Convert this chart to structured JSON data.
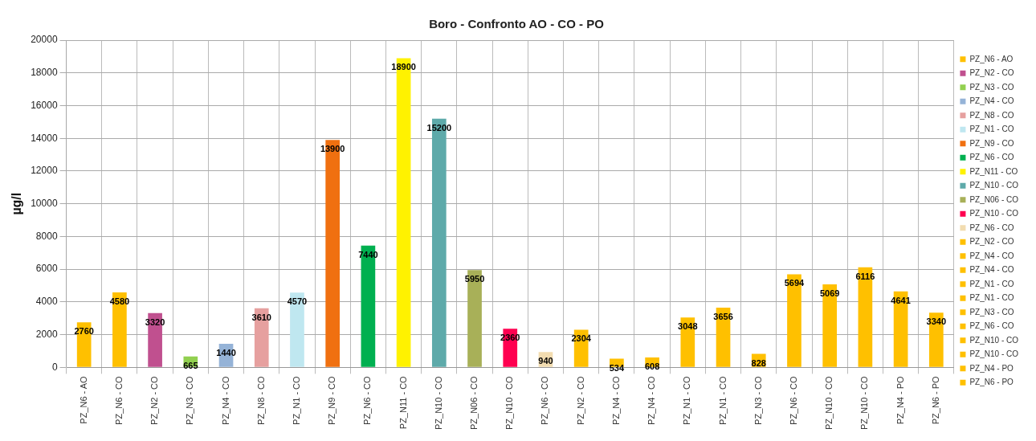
{
  "chart_data": {
    "type": "bar",
    "title": "Boro - Confronto AO - CO - PO",
    "ylabel": "µg/l",
    "categories": [
      "PZ_N6 - AO",
      "PZ_N6 - CO",
      "PZ_N2 - CO",
      "PZ_N3 - CO",
      "PZ_N4 - CO",
      "PZ_N8 - CO",
      "PZ_N1 - CO",
      "PZ_N9 - CO",
      "PZ_N6 - CO",
      "PZ_N11 - CO",
      "PZ_N10 - CO",
      "PZ_N06 - CO",
      "PZ_N10 - CO",
      "PZ_N6 - CO",
      "PZ_N2 - CO",
      "PZ_N4 - CO",
      "PZ_N4 - CO",
      "PZ_N1 - CO",
      "PZ_N1 - CO",
      "PZ_N3 - CO",
      "PZ_N6 - CO",
      "PZ_N10 - CO",
      "PZ_N10 - CO",
      "PZ_N4 - PO",
      "PZ_N6 - PO"
    ],
    "series": [
      {
        "name": "PZ_N6 - AO",
        "color": "#ffc000",
        "values": [
          2760,
          4580,
          null,
          null,
          null,
          null,
          null,
          null,
          null,
          null,
          null,
          null,
          null,
          null,
          null,
          null,
          null,
          null,
          null,
          null,
          null,
          null,
          null,
          null,
          null
        ]
      },
      {
        "name": "PZ_N2 - CO",
        "color": "#c0508f",
        "values": [
          null,
          null,
          3320,
          null,
          null,
          null,
          null,
          null,
          null,
          null,
          null,
          null,
          null,
          null,
          null,
          null,
          null,
          null,
          null,
          null,
          null,
          null,
          null,
          null,
          null
        ]
      },
      {
        "name": "PZ_N3 - CO",
        "color": "#92d050",
        "values": [
          null,
          null,
          null,
          665,
          null,
          null,
          null,
          null,
          null,
          null,
          null,
          null,
          null,
          null,
          null,
          null,
          null,
          null,
          null,
          null,
          null,
          null,
          null,
          null,
          null
        ]
      },
      {
        "name": "PZ_N4 - CO",
        "color": "#95b3d7",
        "values": [
          null,
          null,
          null,
          null,
          1440,
          null,
          null,
          null,
          null,
          null,
          null,
          null,
          null,
          null,
          null,
          null,
          null,
          null,
          null,
          null,
          null,
          null,
          null,
          null,
          null
        ]
      },
      {
        "name": "PZ_N8 - CO",
        "color": "#e6a09f",
        "values": [
          null,
          null,
          null,
          null,
          null,
          3610,
          null,
          null,
          null,
          null,
          null,
          null,
          null,
          null,
          null,
          null,
          null,
          null,
          null,
          null,
          null,
          null,
          null,
          null,
          null
        ]
      },
      {
        "name": "PZ_N1 - CO",
        "color": "#bfe7f0",
        "values": [
          null,
          null,
          null,
          null,
          null,
          null,
          4570,
          null,
          null,
          null,
          null,
          null,
          null,
          null,
          null,
          null,
          null,
          null,
          null,
          null,
          null,
          null,
          null,
          null,
          null
        ]
      },
      {
        "name": "PZ_N9 - CO",
        "color": "#f07010",
        "values": [
          null,
          null,
          null,
          null,
          null,
          null,
          null,
          13900,
          null,
          null,
          null,
          null,
          null,
          null,
          null,
          null,
          null,
          null,
          null,
          null,
          null,
          null,
          null,
          null,
          null
        ]
      },
      {
        "name": "PZ_N6 - CO",
        "color": "#00b050",
        "values": [
          null,
          null,
          null,
          null,
          null,
          null,
          null,
          null,
          7440,
          null,
          null,
          null,
          null,
          null,
          null,
          null,
          null,
          null,
          null,
          null,
          null,
          null,
          null,
          null,
          null
        ]
      },
      {
        "name": "PZ_N11 - CO",
        "color": "#fff200",
        "values": [
          null,
          null,
          null,
          null,
          null,
          null,
          null,
          null,
          null,
          18900,
          null,
          null,
          null,
          null,
          null,
          null,
          null,
          null,
          null,
          null,
          null,
          null,
          null,
          null,
          null
        ]
      },
      {
        "name": "PZ_N10 - CO",
        "color": "#5eaaaa",
        "values": [
          null,
          null,
          null,
          null,
          null,
          null,
          null,
          null,
          null,
          null,
          15200,
          null,
          null,
          null,
          null,
          null,
          null,
          null,
          null,
          null,
          null,
          null,
          null,
          null,
          null
        ]
      },
      {
        "name": "PZ_N06 - CO",
        "color": "#a8b058",
        "values": [
          null,
          null,
          null,
          null,
          null,
          null,
          null,
          null,
          null,
          null,
          null,
          5950,
          null,
          null,
          null,
          null,
          null,
          null,
          null,
          null,
          null,
          null,
          null,
          null,
          null
        ]
      },
      {
        "name": "PZ_N10 - CO",
        "color": "#ff0050",
        "values": [
          null,
          null,
          null,
          null,
          null,
          null,
          null,
          null,
          null,
          null,
          null,
          null,
          2360,
          null,
          null,
          null,
          null,
          null,
          null,
          null,
          null,
          null,
          null,
          null,
          null
        ]
      },
      {
        "name": "PZ_N6 - CO",
        "color": "#f2dcb0",
        "values": [
          null,
          null,
          null,
          null,
          null,
          null,
          null,
          null,
          null,
          null,
          null,
          null,
          null,
          940,
          null,
          null,
          null,
          null,
          null,
          null,
          null,
          null,
          null,
          null,
          null
        ]
      },
      {
        "name": "PZ_N2 - CO",
        "color": "#ffc000",
        "values": [
          null,
          null,
          null,
          null,
          null,
          null,
          null,
          null,
          null,
          null,
          null,
          null,
          null,
          null,
          2304,
          null,
          null,
          null,
          null,
          null,
          null,
          null,
          null,
          null,
          null
        ]
      },
      {
        "name": "PZ_N4 - CO",
        "color": "#ffc000",
        "values": [
          null,
          null,
          null,
          null,
          null,
          null,
          null,
          null,
          null,
          null,
          null,
          null,
          null,
          null,
          null,
          534,
          null,
          null,
          null,
          null,
          null,
          null,
          null,
          null,
          null
        ]
      },
      {
        "name": "PZ_N4 - CO",
        "color": "#ffc000",
        "values": [
          null,
          null,
          null,
          null,
          null,
          null,
          null,
          null,
          null,
          null,
          null,
          null,
          null,
          null,
          null,
          null,
          608,
          null,
          null,
          null,
          null,
          null,
          null,
          null,
          null
        ]
      },
      {
        "name": "PZ_N1 - CO",
        "color": "#ffc000",
        "values": [
          null,
          null,
          null,
          null,
          null,
          null,
          null,
          null,
          null,
          null,
          null,
          null,
          null,
          null,
          null,
          null,
          null,
          3048,
          null,
          null,
          null,
          null,
          null,
          null,
          null
        ]
      },
      {
        "name": "PZ_N1 - CO",
        "color": "#ffc000",
        "values": [
          null,
          null,
          null,
          null,
          null,
          null,
          null,
          null,
          null,
          null,
          null,
          null,
          null,
          null,
          null,
          null,
          null,
          null,
          3656,
          null,
          null,
          null,
          null,
          null,
          null
        ]
      },
      {
        "name": "PZ_N3 - CO",
        "color": "#ffc000",
        "values": [
          null,
          null,
          null,
          null,
          null,
          null,
          null,
          null,
          null,
          null,
          null,
          null,
          null,
          null,
          null,
          null,
          null,
          null,
          null,
          828,
          null,
          null,
          null,
          null,
          null
        ]
      },
      {
        "name": "PZ_N6 - CO",
        "color": "#ffc000",
        "values": [
          null,
          null,
          null,
          null,
          null,
          null,
          null,
          null,
          null,
          null,
          null,
          null,
          null,
          null,
          null,
          null,
          null,
          null,
          null,
          null,
          5694,
          null,
          null,
          null,
          null
        ]
      },
      {
        "name": "PZ_N10 - CO",
        "color": "#ffc000",
        "values": [
          null,
          null,
          null,
          null,
          null,
          null,
          null,
          null,
          null,
          null,
          null,
          null,
          null,
          null,
          null,
          null,
          null,
          null,
          null,
          null,
          null,
          5069,
          null,
          null,
          null
        ]
      },
      {
        "name": "PZ_N10 - CO",
        "color": "#ffc000",
        "values": [
          null,
          null,
          null,
          null,
          null,
          null,
          null,
          null,
          null,
          null,
          null,
          null,
          null,
          null,
          null,
          null,
          null,
          null,
          null,
          null,
          null,
          null,
          6116,
          null,
          null
        ]
      },
      {
        "name": "PZ_N4 - PO",
        "color": "#ffc000",
        "values": [
          null,
          null,
          null,
          null,
          null,
          null,
          null,
          null,
          null,
          null,
          null,
          null,
          null,
          null,
          null,
          null,
          null,
          null,
          null,
          null,
          null,
          null,
          null,
          4641,
          null
        ]
      },
      {
        "name": "PZ_N6 - PO",
        "color": "#ffc000",
        "values": [
          null,
          null,
          null,
          null,
          null,
          null,
          null,
          null,
          null,
          null,
          null,
          null,
          null,
          null,
          null,
          null,
          null,
          null,
          null,
          null,
          null,
          null,
          null,
          null,
          3340
        ]
      }
    ],
    "ylim": [
      0,
      20000
    ],
    "yticks": [
      0,
      2000,
      4000,
      6000,
      8000,
      10000,
      12000,
      14000,
      16000,
      18000,
      20000
    ],
    "grid": true,
    "legend": "right",
    "data_labels": true
  }
}
